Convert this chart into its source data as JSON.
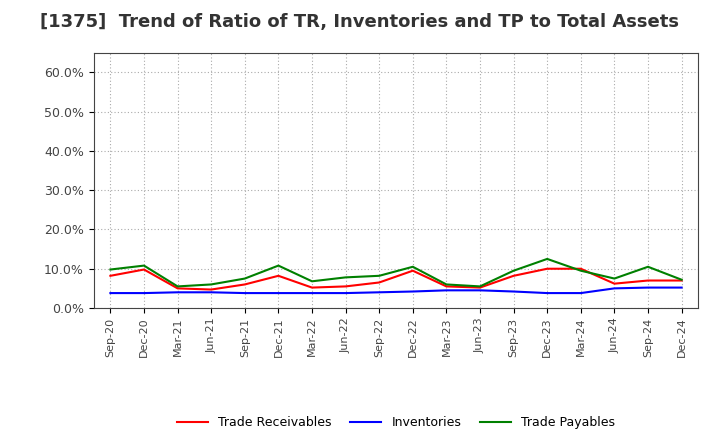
{
  "title": "[1375]  Trend of Ratio of TR, Inventories and TP to Total Assets",
  "x_labels": [
    "Sep-20",
    "Dec-20",
    "Mar-21",
    "Jun-21",
    "Sep-21",
    "Dec-21",
    "Mar-22",
    "Jun-22",
    "Sep-22",
    "Dec-22",
    "Mar-23",
    "Jun-23",
    "Sep-23",
    "Dec-23",
    "Mar-24",
    "Jun-24",
    "Sep-24",
    "Dec-24"
  ],
  "trade_receivables": [
    0.082,
    0.098,
    0.05,
    0.047,
    0.06,
    0.082,
    0.052,
    0.055,
    0.065,
    0.095,
    0.055,
    0.052,
    0.082,
    0.1,
    0.1,
    0.062,
    0.07,
    0.07
  ],
  "inventories": [
    0.038,
    0.038,
    0.04,
    0.04,
    0.038,
    0.038,
    0.038,
    0.038,
    0.04,
    0.042,
    0.045,
    0.045,
    0.042,
    0.038,
    0.038,
    0.05,
    0.052,
    0.052
  ],
  "trade_payables": [
    0.098,
    0.108,
    0.055,
    0.06,
    0.075,
    0.108,
    0.068,
    0.078,
    0.082,
    0.105,
    0.06,
    0.055,
    0.095,
    0.125,
    0.095,
    0.075,
    0.105,
    0.072
  ],
  "tr_color": "#ff0000",
  "inv_color": "#0000ff",
  "tp_color": "#008000",
  "ylim": [
    0.0,
    0.65
  ],
  "yticks": [
    0.0,
    0.1,
    0.2,
    0.3,
    0.4,
    0.5,
    0.6
  ],
  "ytick_labels": [
    "0.0%",
    "10.0%",
    "20.0%",
    "30.0%",
    "40.0%",
    "50.0%",
    "60.0%"
  ],
  "background_color": "#ffffff",
  "grid_color": "#aaaaaa",
  "title_fontsize": 13,
  "legend_labels": [
    "Trade Receivables",
    "Inventories",
    "Trade Payables"
  ]
}
